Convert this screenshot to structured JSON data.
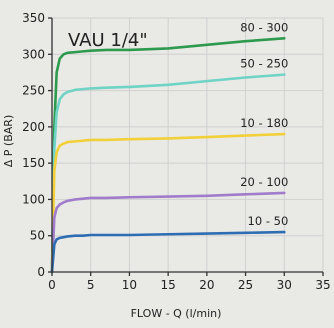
{
  "chart_data": {
    "type": "line",
    "title": "VAU 1/4\"",
    "xlabel": "FLOW - Q (l/min)",
    "ylabel": "Δ P (BAR)",
    "xlim": [
      0,
      35
    ],
    "ylim": [
      0,
      350
    ],
    "x_ticks": [
      "0",
      "5",
      "10",
      "15",
      "20",
      "25",
      "30",
      "35"
    ],
    "y_ticks": [
      "0",
      "50",
      "100",
      "150",
      "200",
      "250",
      "300",
      "350"
    ],
    "grid": true,
    "legend": "labels at line ends",
    "series": [
      {
        "name": "80 - 300",
        "color": "#2e9a4e",
        "x": [
          0,
          0.3,
          0.6,
          1.0,
          1.5,
          2.0,
          3.0,
          4.0,
          5.0,
          7.0,
          10.0,
          15.0,
          20.0,
          25.0,
          30.0
        ],
        "y": [
          0,
          200,
          275,
          294,
          300,
          302,
          303,
          304,
          305,
          306,
          306,
          308,
          313,
          318,
          322
        ]
      },
      {
        "name": "50 - 250",
        "color": "#6fd3c6",
        "x": [
          0,
          0.3,
          0.6,
          1.0,
          1.5,
          2.0,
          3.0,
          4.0,
          5.0,
          7.0,
          10.0,
          15.0,
          20.0,
          25.0,
          30.0
        ],
        "y": [
          0,
          170,
          220,
          238,
          245,
          248,
          251,
          252,
          253,
          254,
          255,
          258,
          263,
          268,
          272
        ]
      },
      {
        "name": "10 - 180",
        "color": "#f2d03a",
        "x": [
          0,
          0.3,
          0.6,
          1.0,
          1.5,
          2.0,
          3.0,
          4.0,
          5.0,
          7.0,
          10.0,
          15.0,
          20.0,
          25.0,
          30.0
        ],
        "y": [
          0,
          140,
          165,
          174,
          177,
          179,
          180,
          181,
          182,
          182,
          183,
          184,
          186,
          188,
          190
        ]
      },
      {
        "name": "20 - 100",
        "color": "#a07ccb",
        "x": [
          0,
          0.3,
          0.6,
          1.0,
          1.5,
          2.0,
          3.0,
          4.0,
          5.0,
          7.0,
          10.0,
          15.0,
          20.0,
          25.0,
          30.0
        ],
        "y": [
          0,
          75,
          88,
          93,
          96,
          98,
          100,
          101,
          102,
          102,
          103,
          104,
          105,
          107,
          109
        ]
      },
      {
        "name": "10 - 50",
        "color": "#2f6db3",
        "x": [
          0,
          0.3,
          0.6,
          1.0,
          1.5,
          2.0,
          3.0,
          4.0,
          5.0,
          7.0,
          10.0,
          15.0,
          20.0,
          25.0,
          30.0
        ],
        "y": [
          0,
          38,
          45,
          47,
          48,
          49,
          50,
          50,
          51,
          51,
          51,
          52,
          53,
          54,
          55
        ]
      }
    ]
  }
}
